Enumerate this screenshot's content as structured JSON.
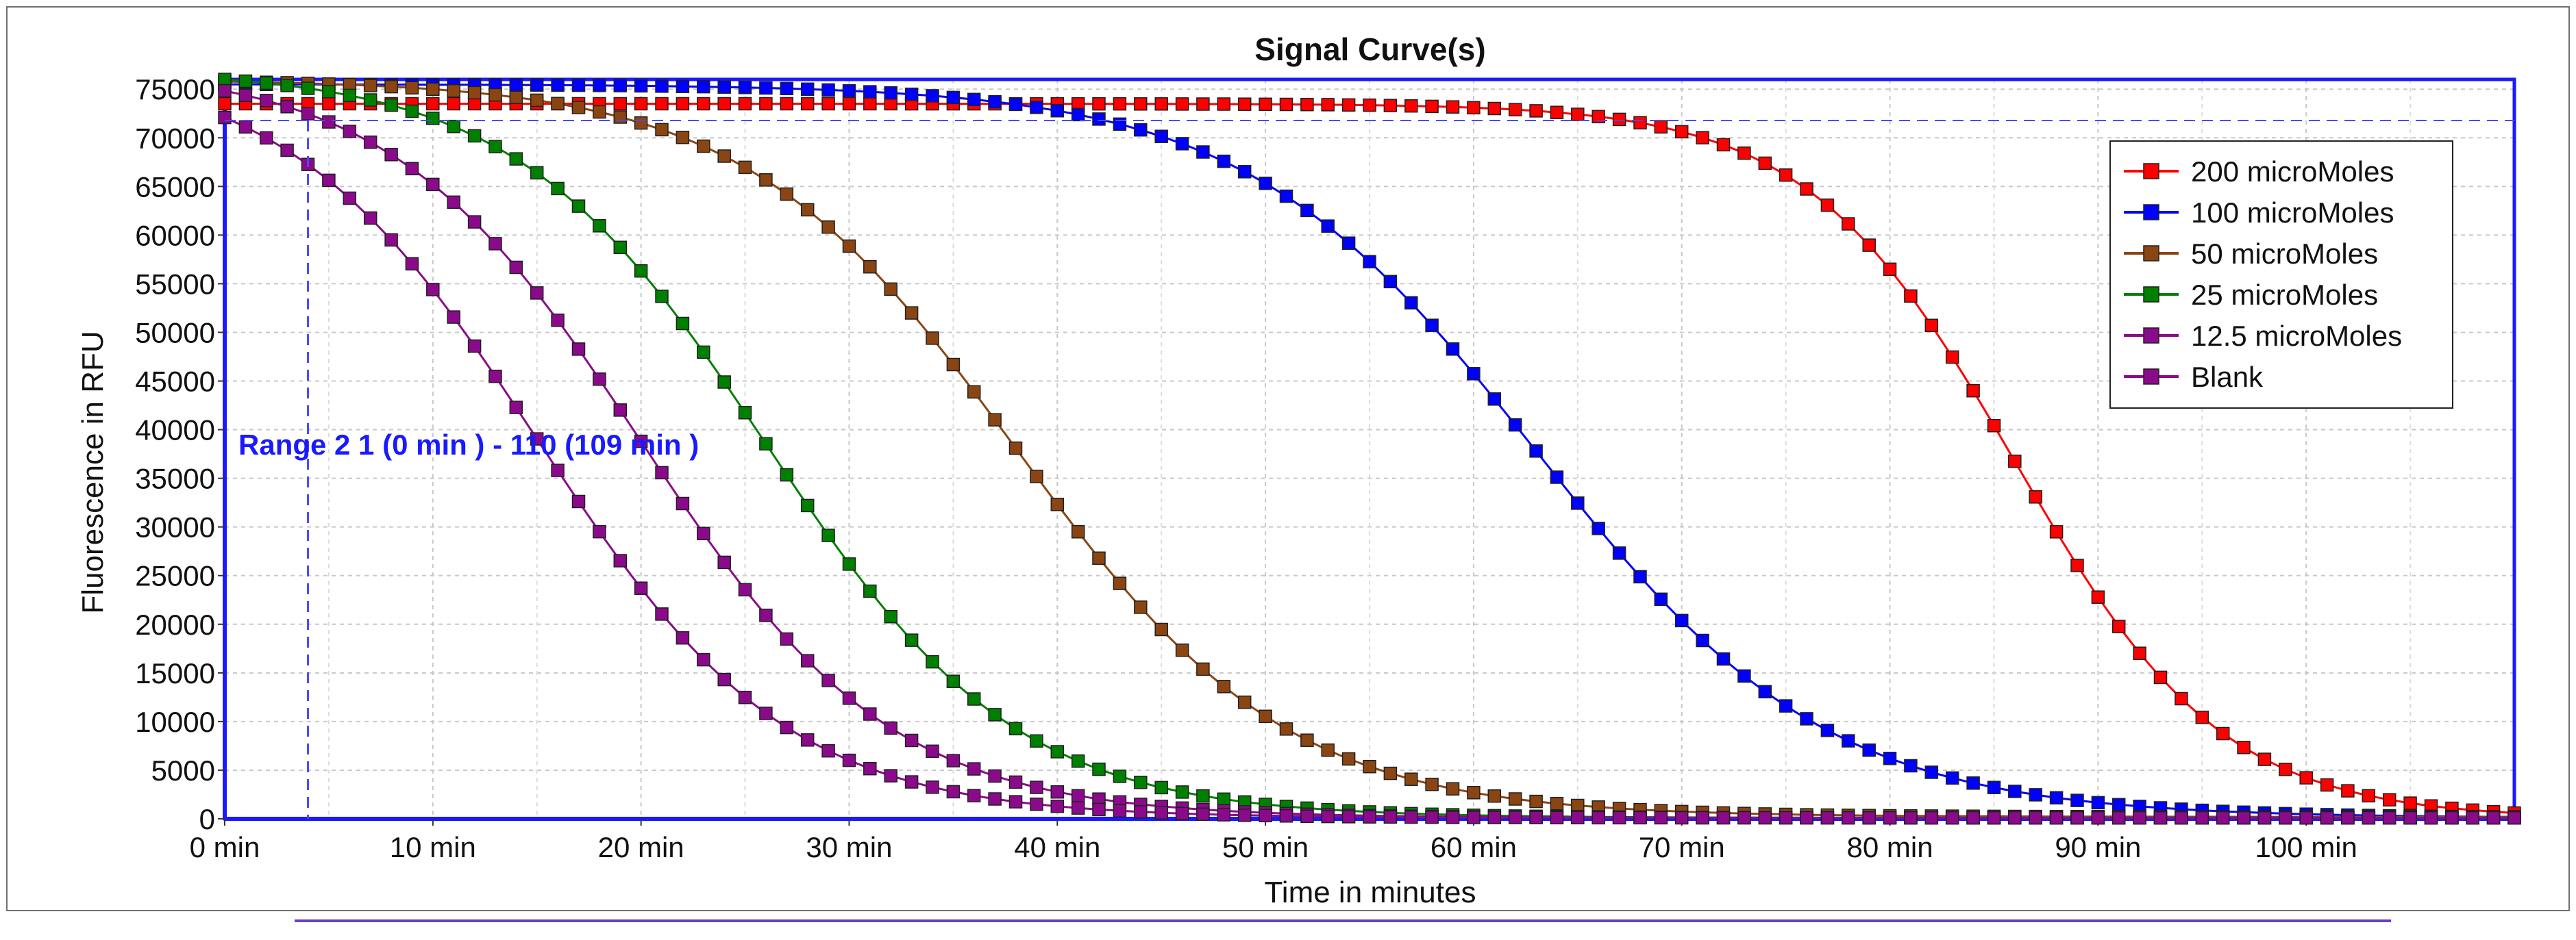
{
  "chart_data": {
    "type": "line",
    "title": "Signal Curve(s)",
    "xlabel": "Time in minutes",
    "ylabel": "Fluorescence in RFU",
    "xlim": [
      0,
      110
    ],
    "ylim": [
      0,
      76000
    ],
    "xticks": [
      0,
      10,
      20,
      30,
      40,
      50,
      60,
      70,
      80,
      90,
      100
    ],
    "xtick_labels": [
      "0 min",
      "10 min",
      "20 min",
      "30 min",
      "40 min",
      "50 min",
      "60 min",
      "70 min",
      "80 min",
      "90 min",
      "100 min"
    ],
    "yticks": [
      0,
      5000,
      10000,
      15000,
      20000,
      25000,
      30000,
      35000,
      40000,
      45000,
      50000,
      55000,
      60000,
      65000,
      70000,
      75000
    ],
    "ytick_labels": [
      "0",
      "5000",
      "10000",
      "15000",
      "20000",
      "25000",
      "30000",
      "35000",
      "40000",
      "45000",
      "50000",
      "55000",
      "60000",
      "65000",
      "70000",
      "75000"
    ],
    "grid": true,
    "legend_position": "top-right",
    "annotation": {
      "text": "Range 2 1 (0 min  ) - 110 (109 min   )",
      "x_marker": 4,
      "y_value": 39000
    },
    "series_model": "sigmoid: baseline + (plateau - baseline) / (1 + exp((x - midpoint) / width)), sampled every 1 min from 0 to 110",
    "series": [
      {
        "name": "200 microMoles",
        "color": "#ff0000",
        "plateau": 73500,
        "baseline": 0,
        "midpoint": 86,
        "width": 5.0
      },
      {
        "name": "100 microMoles",
        "color": "#0000ff",
        "plateau": 75500,
        "baseline": 100,
        "midpoint": 63,
        "width": 7.0
      },
      {
        "name": "50 microMoles",
        "color": "#8b4513",
        "plateau": 76000,
        "baseline": 200,
        "midpoint": 38,
        "width": 6.5
      },
      {
        "name": "25 microMoles",
        "color": "#008000",
        "plateau": 77000,
        "baseline": 100,
        "midpoint": 26,
        "width": 6.0
      },
      {
        "name": "12.5 microMoles",
        "color": "#8b0a8b",
        "plateau": 77500,
        "baseline": 100,
        "midpoint": 20,
        "width": 6.0
      },
      {
        "name": "Blank",
        "color": "#8b0a8b",
        "plateau": 78000,
        "baseline": 100,
        "midpoint": 15,
        "width": 6.0
      }
    ]
  }
}
